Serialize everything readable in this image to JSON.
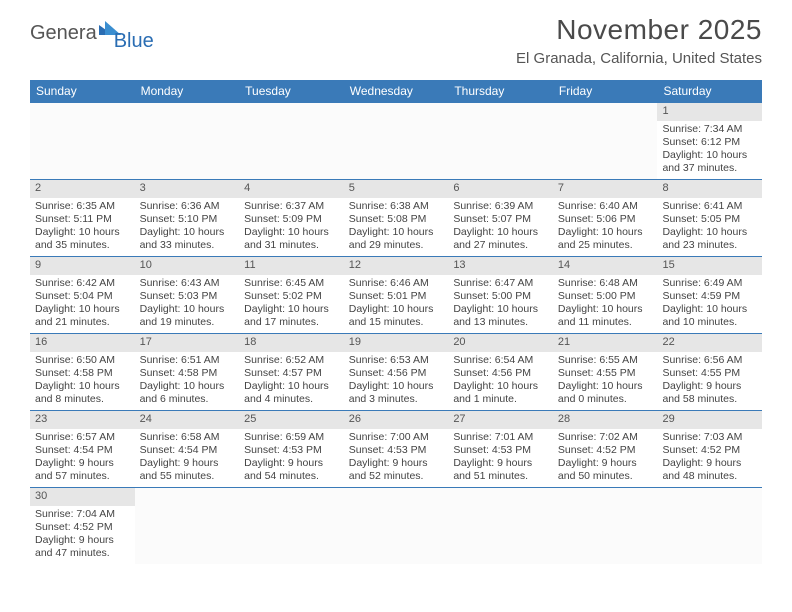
{
  "logo": {
    "part1": "Genera",
    "part2": "Blue"
  },
  "header": {
    "month_year": "November 2025",
    "location": "El Granada, California, United States"
  },
  "calendar": {
    "type": "table",
    "header_bg": "#3a7ab8",
    "header_fg": "#ffffff",
    "daynum_bg": "#e6e6e6",
    "border_color": "#3a7ab8",
    "text_color": "#444444",
    "font_size_body": 10.5,
    "font_size_header": 12,
    "weekdays": [
      "Sunday",
      "Monday",
      "Tuesday",
      "Wednesday",
      "Thursday",
      "Friday",
      "Saturday"
    ],
    "weeks": [
      [
        null,
        null,
        null,
        null,
        null,
        null,
        {
          "n": "1",
          "sr": "Sunrise: 7:34 AM",
          "ss": "Sunset: 6:12 PM",
          "dl": "Daylight: 10 hours and 37 minutes."
        }
      ],
      [
        {
          "n": "2",
          "sr": "Sunrise: 6:35 AM",
          "ss": "Sunset: 5:11 PM",
          "dl": "Daylight: 10 hours and 35 minutes."
        },
        {
          "n": "3",
          "sr": "Sunrise: 6:36 AM",
          "ss": "Sunset: 5:10 PM",
          "dl": "Daylight: 10 hours and 33 minutes."
        },
        {
          "n": "4",
          "sr": "Sunrise: 6:37 AM",
          "ss": "Sunset: 5:09 PM",
          "dl": "Daylight: 10 hours and 31 minutes."
        },
        {
          "n": "5",
          "sr": "Sunrise: 6:38 AM",
          "ss": "Sunset: 5:08 PM",
          "dl": "Daylight: 10 hours and 29 minutes."
        },
        {
          "n": "6",
          "sr": "Sunrise: 6:39 AM",
          "ss": "Sunset: 5:07 PM",
          "dl": "Daylight: 10 hours and 27 minutes."
        },
        {
          "n": "7",
          "sr": "Sunrise: 6:40 AM",
          "ss": "Sunset: 5:06 PM",
          "dl": "Daylight: 10 hours and 25 minutes."
        },
        {
          "n": "8",
          "sr": "Sunrise: 6:41 AM",
          "ss": "Sunset: 5:05 PM",
          "dl": "Daylight: 10 hours and 23 minutes."
        }
      ],
      [
        {
          "n": "9",
          "sr": "Sunrise: 6:42 AM",
          "ss": "Sunset: 5:04 PM",
          "dl": "Daylight: 10 hours and 21 minutes."
        },
        {
          "n": "10",
          "sr": "Sunrise: 6:43 AM",
          "ss": "Sunset: 5:03 PM",
          "dl": "Daylight: 10 hours and 19 minutes."
        },
        {
          "n": "11",
          "sr": "Sunrise: 6:45 AM",
          "ss": "Sunset: 5:02 PM",
          "dl": "Daylight: 10 hours and 17 minutes."
        },
        {
          "n": "12",
          "sr": "Sunrise: 6:46 AM",
          "ss": "Sunset: 5:01 PM",
          "dl": "Daylight: 10 hours and 15 minutes."
        },
        {
          "n": "13",
          "sr": "Sunrise: 6:47 AM",
          "ss": "Sunset: 5:00 PM",
          "dl": "Daylight: 10 hours and 13 minutes."
        },
        {
          "n": "14",
          "sr": "Sunrise: 6:48 AM",
          "ss": "Sunset: 5:00 PM",
          "dl": "Daylight: 10 hours and 11 minutes."
        },
        {
          "n": "15",
          "sr": "Sunrise: 6:49 AM",
          "ss": "Sunset: 4:59 PM",
          "dl": "Daylight: 10 hours and 10 minutes."
        }
      ],
      [
        {
          "n": "16",
          "sr": "Sunrise: 6:50 AM",
          "ss": "Sunset: 4:58 PM",
          "dl": "Daylight: 10 hours and 8 minutes."
        },
        {
          "n": "17",
          "sr": "Sunrise: 6:51 AM",
          "ss": "Sunset: 4:58 PM",
          "dl": "Daylight: 10 hours and 6 minutes."
        },
        {
          "n": "18",
          "sr": "Sunrise: 6:52 AM",
          "ss": "Sunset: 4:57 PM",
          "dl": "Daylight: 10 hours and 4 minutes."
        },
        {
          "n": "19",
          "sr": "Sunrise: 6:53 AM",
          "ss": "Sunset: 4:56 PM",
          "dl": "Daylight: 10 hours and 3 minutes."
        },
        {
          "n": "20",
          "sr": "Sunrise: 6:54 AM",
          "ss": "Sunset: 4:56 PM",
          "dl": "Daylight: 10 hours and 1 minute."
        },
        {
          "n": "21",
          "sr": "Sunrise: 6:55 AM",
          "ss": "Sunset: 4:55 PM",
          "dl": "Daylight: 10 hours and 0 minutes."
        },
        {
          "n": "22",
          "sr": "Sunrise: 6:56 AM",
          "ss": "Sunset: 4:55 PM",
          "dl": "Daylight: 9 hours and 58 minutes."
        }
      ],
      [
        {
          "n": "23",
          "sr": "Sunrise: 6:57 AM",
          "ss": "Sunset: 4:54 PM",
          "dl": "Daylight: 9 hours and 57 minutes."
        },
        {
          "n": "24",
          "sr": "Sunrise: 6:58 AM",
          "ss": "Sunset: 4:54 PM",
          "dl": "Daylight: 9 hours and 55 minutes."
        },
        {
          "n": "25",
          "sr": "Sunrise: 6:59 AM",
          "ss": "Sunset: 4:53 PM",
          "dl": "Daylight: 9 hours and 54 minutes."
        },
        {
          "n": "26",
          "sr": "Sunrise: 7:00 AM",
          "ss": "Sunset: 4:53 PM",
          "dl": "Daylight: 9 hours and 52 minutes."
        },
        {
          "n": "27",
          "sr": "Sunrise: 7:01 AM",
          "ss": "Sunset: 4:53 PM",
          "dl": "Daylight: 9 hours and 51 minutes."
        },
        {
          "n": "28",
          "sr": "Sunrise: 7:02 AM",
          "ss": "Sunset: 4:52 PM",
          "dl": "Daylight: 9 hours and 50 minutes."
        },
        {
          "n": "29",
          "sr": "Sunrise: 7:03 AM",
          "ss": "Sunset: 4:52 PM",
          "dl": "Daylight: 9 hours and 48 minutes."
        }
      ],
      [
        {
          "n": "30",
          "sr": "Sunrise: 7:04 AM",
          "ss": "Sunset: 4:52 PM",
          "dl": "Daylight: 9 hours and 47 minutes."
        },
        null,
        null,
        null,
        null,
        null,
        null
      ]
    ]
  }
}
